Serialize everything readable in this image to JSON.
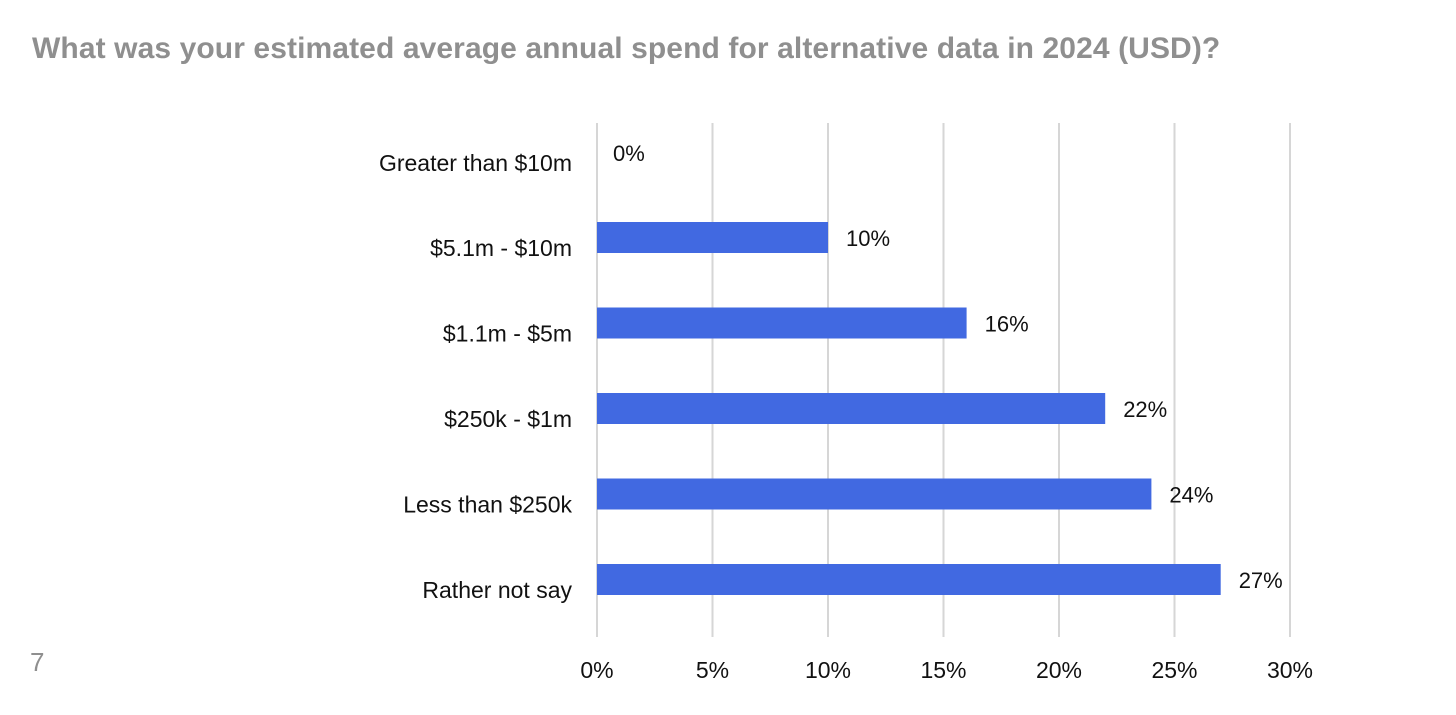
{
  "page": {
    "title": "What was your estimated average annual spend for alternative data in 2024 (USD)?",
    "page_number": "7"
  },
  "chart_data": {
    "type": "bar",
    "orientation": "horizontal",
    "title": "What was your estimated average annual spend for alternative data in 2024 (USD)?",
    "xlabel": "",
    "ylabel": "",
    "categories": [
      "Greater than $10m",
      "$5.1m - $10m",
      "$1.1m - $5m",
      "$250k - $1m",
      "Less than $250k",
      "Rather not say"
    ],
    "values": [
      0,
      10,
      16,
      22,
      24,
      27
    ],
    "data_labels": [
      "0%",
      "10%",
      "16%",
      "22%",
      "24%",
      "27%"
    ],
    "xlim": [
      0,
      30
    ],
    "xticks": [
      0,
      5,
      10,
      15,
      20,
      25,
      30
    ],
    "xtick_labels": [
      "0%",
      "5%",
      "10%",
      "15%",
      "20%",
      "25%",
      "30%"
    ],
    "grid": "vertical",
    "legend": "none",
    "bar_color": "#4169E1"
  }
}
